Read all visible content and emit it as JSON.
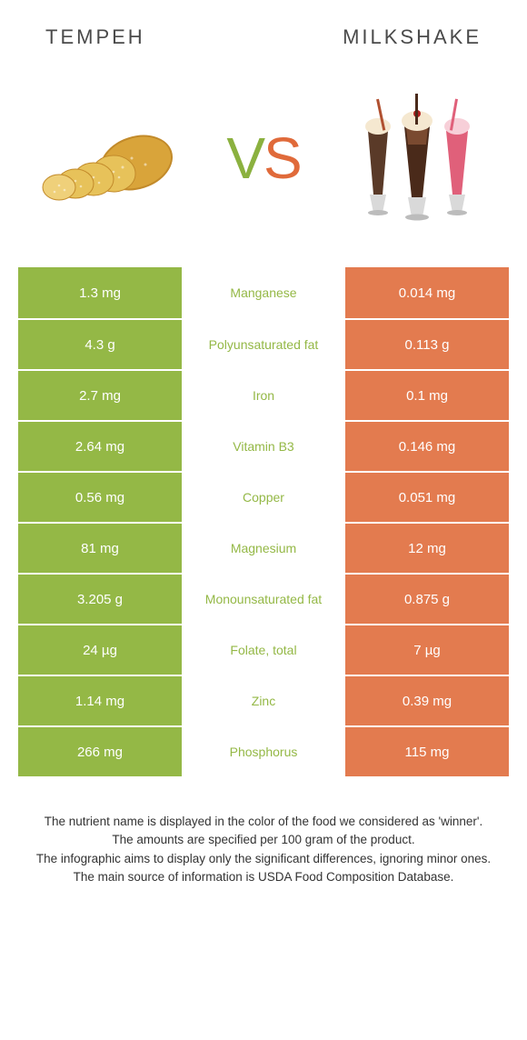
{
  "header": {
    "left": "Tempeh",
    "right": "Milkshake"
  },
  "vs": {
    "v": "V",
    "s": "S"
  },
  "colors": {
    "left_bg": "#94b846",
    "right_bg": "#e37b4f",
    "mid_text_winner_left": "#94b846",
    "mid_text_winner_right": "#e37b4f"
  },
  "rows": [
    {
      "left": "1.3 mg",
      "mid": "Manganese",
      "right": "0.014 mg",
      "winner": "left"
    },
    {
      "left": "4.3 g",
      "mid": "Polyunsaturated fat",
      "right": "0.113 g",
      "winner": "left"
    },
    {
      "left": "2.7 mg",
      "mid": "Iron",
      "right": "0.1 mg",
      "winner": "left"
    },
    {
      "left": "2.64 mg",
      "mid": "Vitamin B3",
      "right": "0.146 mg",
      "winner": "left"
    },
    {
      "left": "0.56 mg",
      "mid": "Copper",
      "right": "0.051 mg",
      "winner": "left"
    },
    {
      "left": "81 mg",
      "mid": "Magnesium",
      "right": "12 mg",
      "winner": "left"
    },
    {
      "left": "3.205 g",
      "mid": "Monounsaturated fat",
      "right": "0.875 g",
      "winner": "left"
    },
    {
      "left": "24 µg",
      "mid": "Folate, total",
      "right": "7 µg",
      "winner": "left"
    },
    {
      "left": "1.14 mg",
      "mid": "Zinc",
      "right": "0.39 mg",
      "winner": "left"
    },
    {
      "left": "266 mg",
      "mid": "Phosphorus",
      "right": "115 mg",
      "winner": "left"
    }
  ],
  "footer": {
    "line1": "The nutrient name is displayed in the color of the food we considered as 'winner'.",
    "line2": "The amounts are specified per 100 gram of the product.",
    "line3": "The infographic aims to display only the significant differences, ignoring minor ones.",
    "line4": "The main source of information is USDA Food Composition Database."
  }
}
